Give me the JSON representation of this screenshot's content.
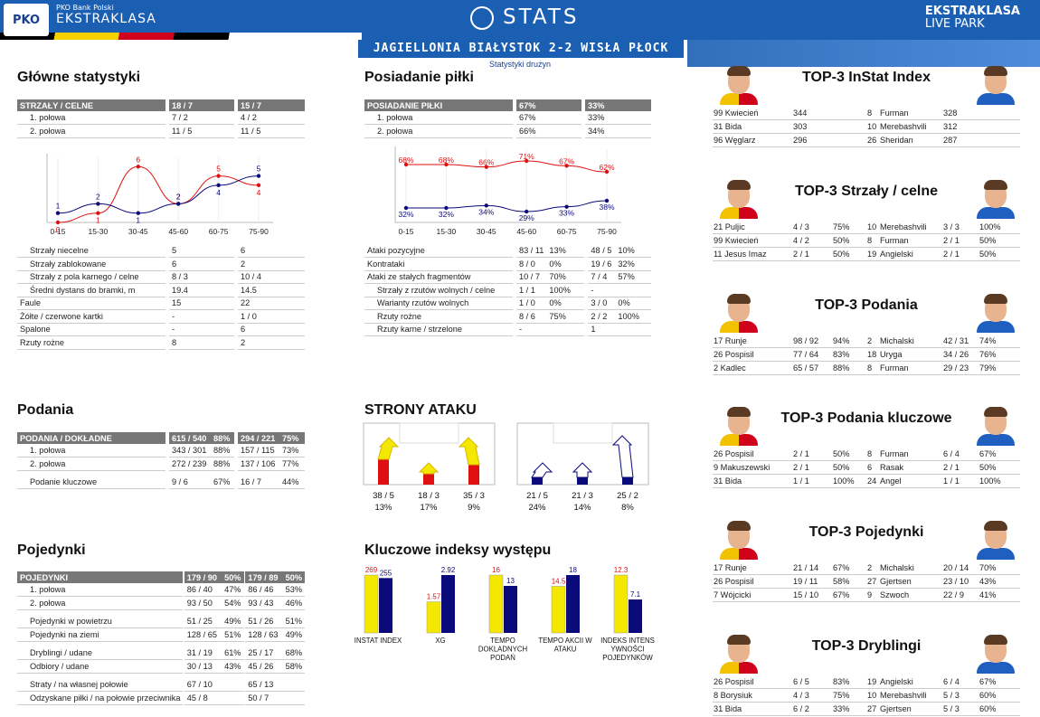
{
  "header": {
    "bank": "PKO Bank Polski",
    "league": "EKSTRAKLASA",
    "pko_logo": "PKO",
    "title": "STATS",
    "livepark_1": "EKSTRAKLASA",
    "livepark_2": "LIVE PARK",
    "match": "JAGIELLONIA BIAŁYSTOK 2-2 WISŁA PŁOCK",
    "subtitle": "Statystyki drużyn"
  },
  "colors": {
    "home": "#e01010",
    "away": "#0a0a7a",
    "yellow": "#f5e800",
    "header_blue": "#1b5fb3",
    "table_header": "#777777"
  },
  "main_stats": {
    "title": "Główne statystyki",
    "header": [
      "STRZAŁY / CELNE",
      "18 / 7",
      "15 / 7"
    ],
    "rows_top": [
      [
        "1. połowa",
        "7 / 2",
        "4 / 2"
      ],
      [
        "2. połowa",
        "11 / 5",
        "11 / 5"
      ]
    ],
    "rows_bottom": [
      [
        "Strzały niecelne",
        "5",
        "6",
        true
      ],
      [
        "Strzały zablokowane",
        "6",
        "2",
        true
      ],
      [
        "Strzały z pola karnego / celne",
        "8 / 3",
        "10 / 4",
        true
      ],
      [
        "Średni dystans do bramki, m",
        "19.4",
        "14.5",
        true
      ],
      [
        "Faule",
        "15",
        "22",
        false
      ],
      [
        "Żółte / czerwone kartki",
        "-",
        "1 / 0",
        false
      ],
      [
        "Spalone",
        "-",
        "6",
        false
      ],
      [
        "Rzuty rożne",
        "8",
        "2",
        false
      ]
    ]
  },
  "shots_chart": {
    "type": "line",
    "categories": [
      "0-15",
      "15-30",
      "30-45",
      "45-60",
      "60-75",
      "75-90"
    ],
    "series": [
      {
        "values": [
          0,
          1,
          6,
          2,
          5,
          4
        ]
      },
      {
        "values": [
          1,
          2,
          1,
          2,
          4,
          5
        ]
      }
    ],
    "ylim": [
      0,
      7
    ]
  },
  "possession": {
    "title": "Posiadanie piłki",
    "header": [
      "POSIADANIE PIŁKI",
      "67%",
      "33%"
    ],
    "rows_top": [
      [
        "1. połowa",
        "67%",
        "33%"
      ],
      [
        "2. połowa",
        "66%",
        "34%"
      ]
    ],
    "rows_bottom": [
      [
        "Ataki pozycyjne",
        "83 / 11",
        "13%",
        "48 / 5",
        "10%",
        false
      ],
      [
        "Kontrataki",
        "8 / 0",
        "0%",
        "19 / 6",
        "32%",
        false
      ],
      [
        "Ataki ze stałych fragmentów",
        "10 / 7",
        "70%",
        "7 / 4",
        "57%",
        false
      ],
      [
        "Strzały z rzutów wolnych / celne",
        "1 / 1",
        "100%",
        "-",
        "",
        true
      ],
      [
        "Warianty rzutów wolnych",
        "1 / 0",
        "0%",
        "3 / 0",
        "0%",
        true
      ],
      [
        "Rzuty rożne",
        "8 / 6",
        "75%",
        "2 / 2",
        "100%",
        true
      ],
      [
        "Rzuty karne / strzelone",
        "-",
        "",
        "1",
        "",
        true
      ]
    ]
  },
  "possession_chart": {
    "type": "line",
    "categories": [
      "0-15",
      "15-30",
      "30-45",
      "45-60",
      "60-75",
      "75-90"
    ],
    "series": [
      {
        "values": [
          68,
          68,
          66,
          71,
          67,
          62
        ]
      },
      {
        "values": [
          32,
          32,
          34,
          29,
          33,
          38
        ]
      }
    ],
    "labels_home": [
      "68%",
      "68%",
      "66%",
      "71%",
      "67%",
      "62%"
    ],
    "labels_away": [
      "32%",
      "32%",
      "34%",
      "29%",
      "33%",
      "38%"
    ]
  },
  "passes": {
    "title": "Podania",
    "header": [
      "PODANIA / DOKŁADNE",
      "615 / 540",
      "88%",
      "294 / 221",
      "75%"
    ],
    "rows": [
      [
        "1. połowa",
        "343 / 301",
        "88%",
        "157 / 115",
        "73%"
      ],
      [
        "2. połowa",
        "272 / 239",
        "88%",
        "137 / 106",
        "77%"
      ]
    ],
    "key": [
      "Podanie kluczowe",
      "9 / 6",
      "67%",
      "16 / 7",
      "44%"
    ]
  },
  "attack": {
    "title": "STRONY ATAKU",
    "home": [
      [
        "38 / 5",
        "13%"
      ],
      [
        "18 / 3",
        "17%"
      ],
      [
        "35 / 3",
        "9%"
      ]
    ],
    "away": [
      [
        "21 / 5",
        "24%"
      ],
      [
        "21 / 3",
        "14%"
      ],
      [
        "25 / 2",
        "8%"
      ]
    ]
  },
  "duels": {
    "title": "Pojedynki",
    "header": [
      "POJEDYNKI",
      "179 / 90",
      "50%",
      "179 / 89",
      "50%"
    ],
    "rows": [
      [
        "1. połowa",
        "86 / 40",
        "47%",
        "86 / 46",
        "53%",
        0
      ],
      [
        "2. połowa",
        "93 / 50",
        "54%",
        "93 / 43",
        "46%",
        0
      ],
      [
        "Pojedynki w powietrzu",
        "51 / 25",
        "49%",
        "51 / 26",
        "51%",
        1
      ],
      [
        "Pojedynki na ziemi",
        "128 / 65",
        "51%",
        "128 / 63",
        "49%",
        0
      ],
      [
        "Dryblingi / udane",
        "31 / 19",
        "61%",
        "25 / 17",
        "68%",
        1
      ],
      [
        "Odbiory / udane",
        "30 / 13",
        "43%",
        "45 / 26",
        "58%",
        0
      ],
      [
        "Straty / na własnej połowie",
        "67 / 10",
        "",
        "65 / 13",
        "",
        1
      ],
      [
        "Odzyskane piłki / na połowie przeciwnika",
        "45 / 8",
        "",
        "50 / 7",
        "",
        0
      ]
    ]
  },
  "key_indexes": {
    "title": "Kluczowe indeksy występu",
    "chart_data": {
      "type": "bar",
      "categories": [
        "INSTAT INDEX",
        "XG",
        "TEMPO DOKLADNYCH PODAŃ",
        "TEMPO AKCII W ATAKU",
        "INDEKS INTENS YWNOŚCI POJEDYNKÓW"
      ],
      "series": [
        {
          "values": [
            269,
            1.57,
            16,
            14.5,
            12.3
          ]
        },
        {
          "values": [
            255,
            2.92,
            13,
            18,
            7.1
          ]
        }
      ],
      "labels_home": [
        "269",
        "1.57",
        "16",
        "14.5",
        "12.3"
      ],
      "labels_away": [
        "255",
        "2.92",
        "13",
        "18",
        "7.1"
      ]
    }
  },
  "tops": [
    {
      "title": "TOP-3 InStat Index",
      "rows": [
        [
          "99 Kwiecień",
          "344",
          "",
          "8",
          "Furman",
          "328",
          ""
        ],
        [
          "31 Bida",
          "303",
          "",
          "10",
          "Merebashvili",
          "312",
          ""
        ],
        [
          "96 Węglarz",
          "296",
          "",
          "26",
          "Sheridan",
          "287",
          ""
        ]
      ]
    },
    {
      "title": "TOP-3 Strzały / celne",
      "rows": [
        [
          "21 Puljic",
          "4 / 3",
          "75%",
          "10",
          "Merebashvili",
          "3 / 3",
          "100%"
        ],
        [
          "99 Kwiecień",
          "4 / 2",
          "50%",
          "8",
          "Furman",
          "2 / 1",
          "50%"
        ],
        [
          "11 Jesus Imaz",
          "2 / 1",
          "50%",
          "19",
          "Angielski",
          "2 / 1",
          "50%"
        ]
      ]
    },
    {
      "title": "TOP-3 Podania",
      "rows": [
        [
          "17 Runje",
          "98 / 92",
          "94%",
          "2",
          "Michalski",
          "42 / 31",
          "74%"
        ],
        [
          "26 Pospisil",
          "77 / 64",
          "83%",
          "18",
          "Uryga",
          "34 / 26",
          "76%"
        ],
        [
          "2  Kadlec",
          "65 / 57",
          "88%",
          "8",
          "Furman",
          "29 / 23",
          "79%"
        ]
      ]
    },
    {
      "title": "TOP-3 Podania kluczowe",
      "rows": [
        [
          "26 Pospisil",
          "2 / 1",
          "50%",
          "8",
          "Furman",
          "6 / 4",
          "67%"
        ],
        [
          "9  Makuszewski",
          "2 / 1",
          "50%",
          "6",
          "Rasak",
          "2 / 1",
          "50%"
        ],
        [
          "31 Bida",
          "1 / 1",
          "100%",
          "24",
          "Angel",
          "1 / 1",
          "100%"
        ]
      ]
    },
    {
      "title": "TOP-3 Pojedynki",
      "rows": [
        [
          "17 Runje",
          "21 / 14",
          "67%",
          "2",
          "Michalski",
          "20 / 14",
          "70%"
        ],
        [
          "26 Pospisil",
          "19 / 11",
          "58%",
          "27",
          "Gjertsen",
          "23 / 10",
          "43%"
        ],
        [
          "7  Wójcicki",
          "15 / 10",
          "67%",
          "9",
          "Szwoch",
          "22 / 9",
          "41%"
        ]
      ]
    },
    {
      "title": "TOP-3 Dryblingi",
      "rows": [
        [
          "26 Pospisil",
          "6 / 5",
          "83%",
          "19",
          "Angielski",
          "6 / 4",
          "67%"
        ],
        [
          "8  Borysiuk",
          "4 / 3",
          "75%",
          "10",
          "Merebashvili",
          "5 / 3",
          "60%"
        ],
        [
          "31 Bida",
          "6 / 2",
          "33%",
          "27",
          "Gjertsen",
          "5 / 3",
          "60%"
        ]
      ]
    }
  ]
}
